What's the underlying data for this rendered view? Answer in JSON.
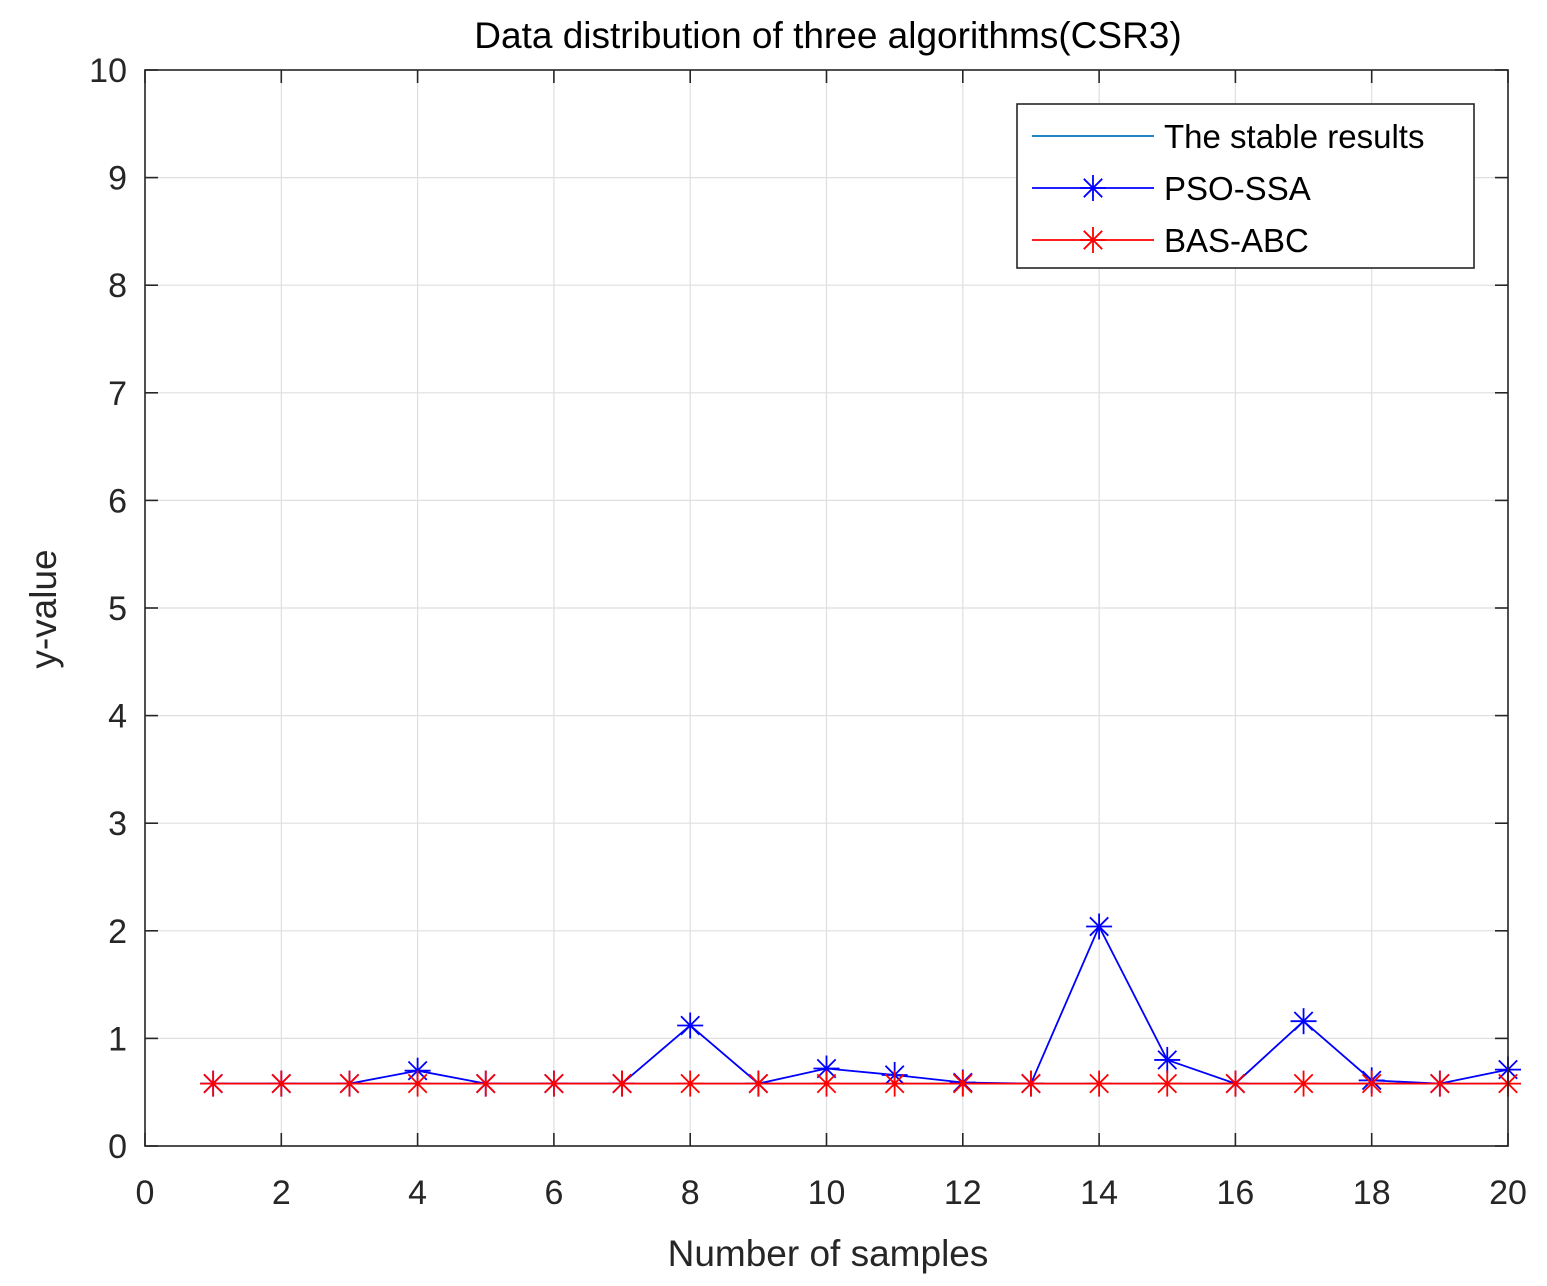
{
  "chart_data": {
    "type": "line",
    "title": "Data distribution of three algorithms(CSR3)",
    "xlabel": "Number of samples",
    "ylabel": "y-value",
    "xlim": [
      0,
      20
    ],
    "ylim": [
      0,
      10
    ],
    "xticks": [
      0,
      2,
      4,
      6,
      8,
      10,
      12,
      14,
      16,
      18,
      20
    ],
    "yticks": [
      0,
      1,
      2,
      3,
      4,
      5,
      6,
      7,
      8,
      9,
      10
    ],
    "xtick_labels": [
      "0",
      "2",
      "4",
      "6",
      "8",
      "10",
      "12",
      "14",
      "16",
      "18",
      "20"
    ],
    "ytick_labels": [
      "0",
      "1",
      "2",
      "3",
      "4",
      "5",
      "6",
      "7",
      "8",
      "9",
      "10"
    ],
    "grid": true,
    "legend_position": "top-right",
    "x": [
      1,
      2,
      3,
      4,
      5,
      6,
      7,
      8,
      9,
      10,
      11,
      12,
      13,
      14,
      15,
      16,
      17,
      18,
      19,
      20
    ],
    "series": [
      {
        "name": "The stable results",
        "color": "#0072BD",
        "marker": "none",
        "values": [
          0.58,
          0.58,
          0.58,
          0.58,
          0.58,
          0.58,
          0.58,
          0.58,
          0.58,
          0.58,
          0.58,
          0.58,
          0.58,
          0.58,
          0.58,
          0.58,
          0.58,
          0.58,
          0.58,
          0.58
        ]
      },
      {
        "name": "PSO-SSA",
        "color": "#0000FF",
        "marker": "asterisk",
        "values": [
          0.58,
          0.58,
          0.58,
          0.7,
          0.58,
          0.58,
          0.58,
          1.12,
          0.58,
          0.72,
          0.66,
          0.59,
          0.58,
          2.04,
          0.8,
          0.58,
          1.16,
          0.61,
          0.58,
          0.71
        ]
      },
      {
        "name": "BAS-ABC",
        "color": "#FF0000",
        "marker": "asterisk",
        "values": [
          0.58,
          0.58,
          0.58,
          0.58,
          0.58,
          0.58,
          0.58,
          0.58,
          0.58,
          0.58,
          0.58,
          0.58,
          0.58,
          0.58,
          0.58,
          0.58,
          0.58,
          0.58,
          0.58,
          0.58
        ]
      }
    ]
  }
}
